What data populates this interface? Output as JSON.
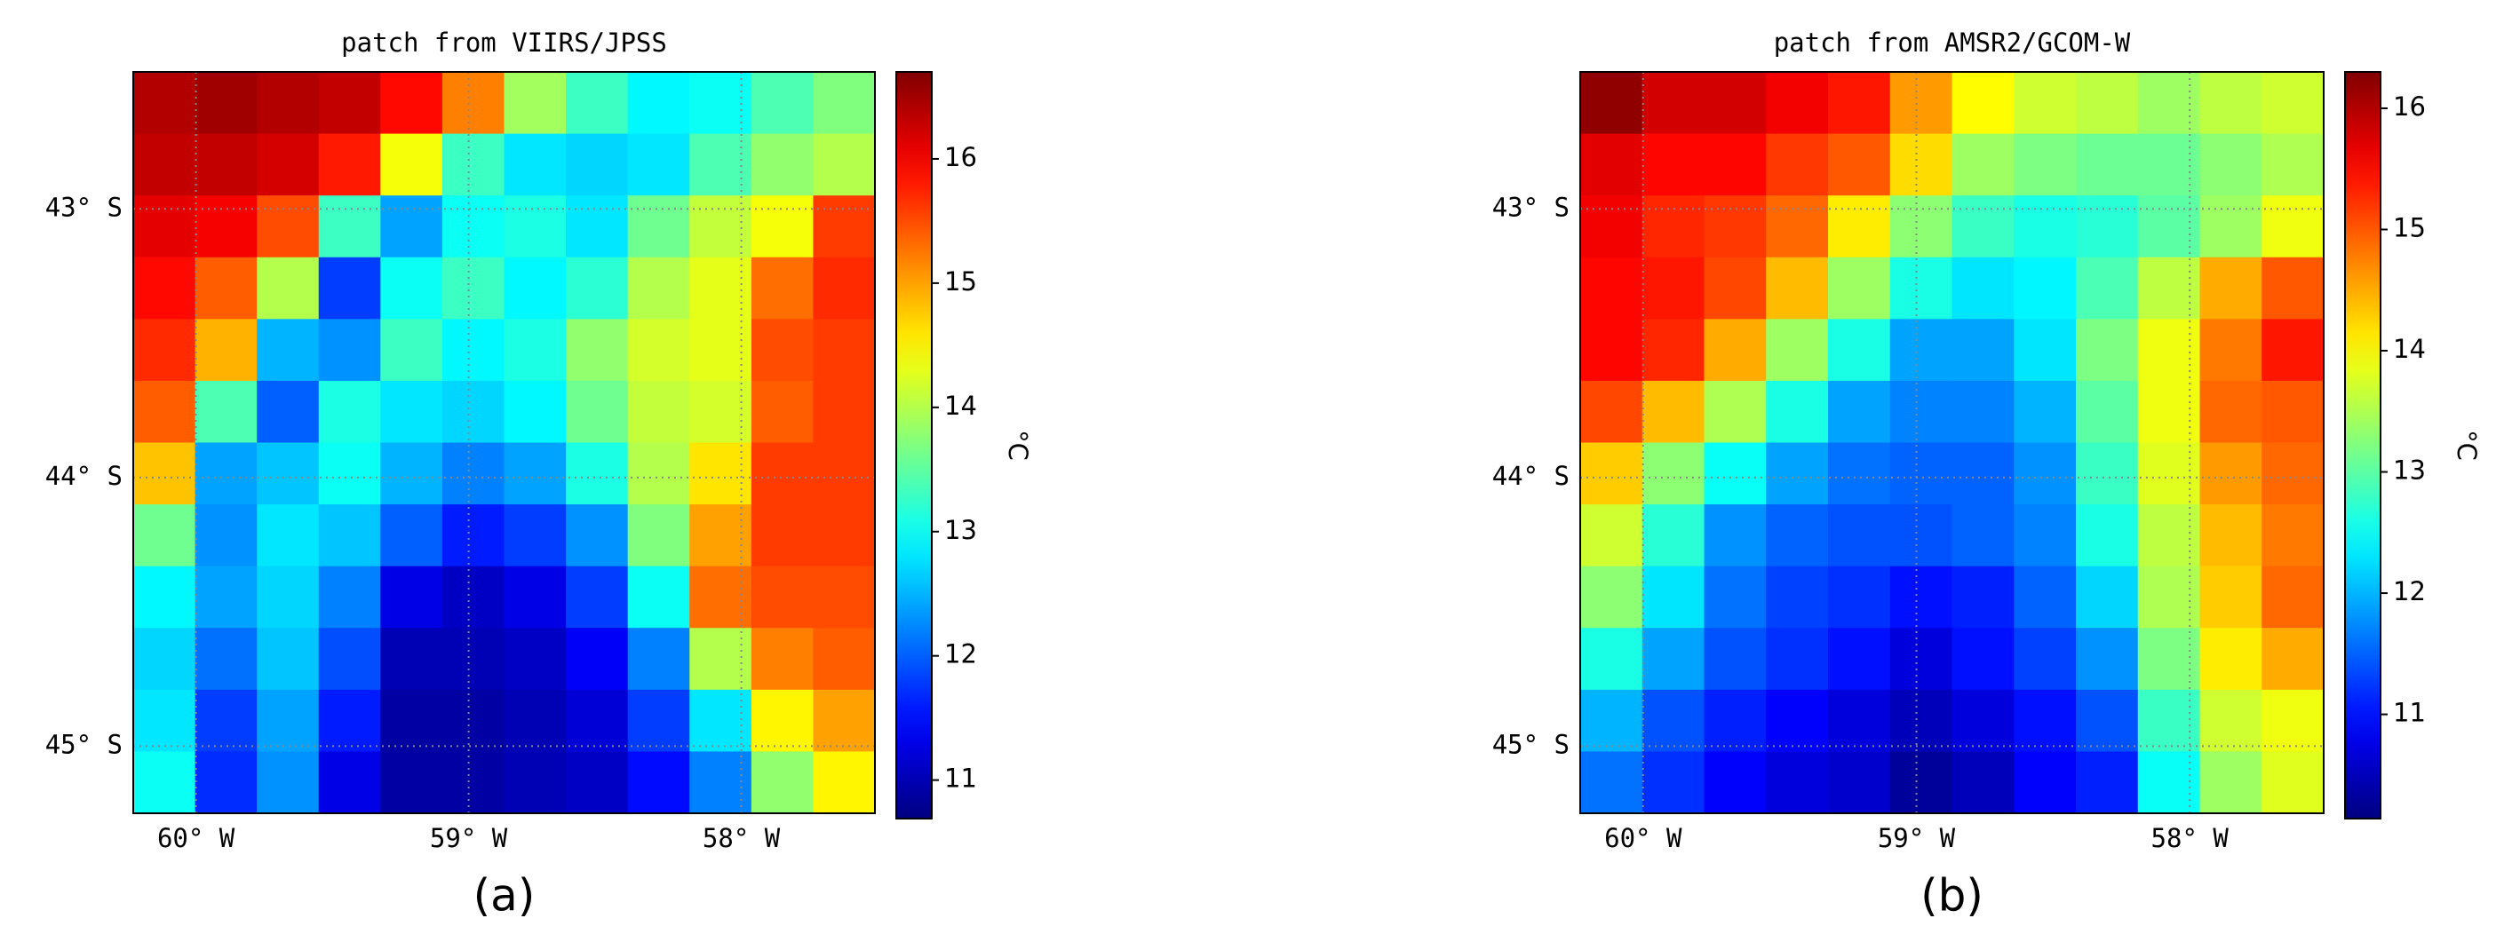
{
  "chart_data": [
    {
      "type": "heatmap",
      "title": "patch from VIIRS/JPSS",
      "caption": "(a)",
      "colormap": "jet",
      "grid": true,
      "colorbar_label": "°C",
      "xlim": [
        -60.23,
        -57.51
      ],
      "ylim": [
        -45.25,
        -42.49
      ],
      "xticks": [
        {
          "value": -60,
          "label": "60° W"
        },
        {
          "value": -59,
          "label": "59° W"
        },
        {
          "value": -58,
          "label": "58° W"
        }
      ],
      "yticks": [
        {
          "value": -45,
          "label": "45° S"
        },
        {
          "value": -44,
          "label": "44° S"
        },
        {
          "value": -43,
          "label": "43° S"
        }
      ],
      "clim": [
        10.69,
        16.7
      ],
      "cticks": [
        11,
        12,
        13,
        14,
        15,
        16
      ],
      "values": [
        [
          16.4,
          16.5,
          16.4,
          16.3,
          15.9,
          15.2,
          13.9,
          13.3,
          12.9,
          13.0,
          13.4,
          13.7
        ],
        [
          16.3,
          16.3,
          16.2,
          15.8,
          14.4,
          13.3,
          12.8,
          12.7,
          12.8,
          13.4,
          13.8,
          14.0
        ],
        [
          16.1,
          16.0,
          15.5,
          13.3,
          12.4,
          13.0,
          13.1,
          12.8,
          13.6,
          14.1,
          14.4,
          15.6
        ],
        [
          15.9,
          15.4,
          14.0,
          11.8,
          13.0,
          13.3,
          12.9,
          13.2,
          14.0,
          14.3,
          15.3,
          15.7
        ],
        [
          15.7,
          14.9,
          12.5,
          12.3,
          13.3,
          12.9,
          13.1,
          13.8,
          14.2,
          14.3,
          15.5,
          15.6
        ],
        [
          15.4,
          13.4,
          12.0,
          13.1,
          12.8,
          12.7,
          12.9,
          13.6,
          14.1,
          14.2,
          15.4,
          15.6
        ],
        [
          14.8,
          12.4,
          12.6,
          13.0,
          12.5,
          12.2,
          12.4,
          13.1,
          14.0,
          14.6,
          15.6,
          15.6
        ],
        [
          13.6,
          12.3,
          12.8,
          12.6,
          12.0,
          11.6,
          11.8,
          12.3,
          13.7,
          15.0,
          15.6,
          15.6
        ],
        [
          12.9,
          12.4,
          12.7,
          12.2,
          11.3,
          11.1,
          11.3,
          11.8,
          13.0,
          15.3,
          15.5,
          15.5
        ],
        [
          12.7,
          12.1,
          12.6,
          11.9,
          11.0,
          11.0,
          11.1,
          11.4,
          12.2,
          14.0,
          15.2,
          15.4
        ],
        [
          12.8,
          11.8,
          12.4,
          11.6,
          10.9,
          10.9,
          11.0,
          11.2,
          11.8,
          12.8,
          14.5,
          15.0
        ],
        [
          13.0,
          11.7,
          12.3,
          11.3,
          10.9,
          10.9,
          11.0,
          11.1,
          11.5,
          12.2,
          13.8,
          14.5
        ]
      ]
    },
    {
      "type": "heatmap",
      "title": "patch from AMSR2/GCOM-W",
      "caption": "(b)",
      "colormap": "jet",
      "grid": true,
      "colorbar_label": "°C",
      "xlim": [
        -60.23,
        -57.51
      ],
      "ylim": [
        -45.25,
        -42.49
      ],
      "xticks": [
        {
          "value": -60,
          "label": "60° W"
        },
        {
          "value": -59,
          "label": "59° W"
        },
        {
          "value": -58,
          "label": "58° W"
        }
      ],
      "yticks": [
        {
          "value": -45,
          "label": "45° S"
        },
        {
          "value": -44,
          "label": "44° S"
        },
        {
          "value": -43,
          "label": "43° S"
        }
      ],
      "clim": [
        10.14,
        16.3
      ],
      "cticks": [
        11,
        12,
        13,
        14,
        15,
        16
      ],
      "values": [
        [
          16.2,
          15.8,
          15.8,
          15.6,
          15.4,
          14.6,
          14.0,
          13.7,
          13.6,
          13.4,
          13.6,
          13.7
        ],
        [
          15.7,
          15.5,
          15.5,
          15.2,
          15.0,
          14.2,
          13.4,
          13.2,
          13.1,
          13.1,
          13.3,
          13.5
        ],
        [
          15.6,
          15.3,
          15.2,
          14.9,
          14.1,
          13.3,
          12.8,
          12.6,
          12.7,
          13.0,
          13.4,
          13.9
        ],
        [
          15.5,
          15.4,
          15.1,
          14.4,
          13.4,
          12.6,
          12.3,
          12.4,
          12.9,
          13.6,
          14.5,
          15.0
        ],
        [
          15.5,
          15.3,
          14.5,
          13.4,
          12.6,
          11.9,
          11.9,
          12.3,
          13.2,
          13.9,
          14.8,
          15.4
        ],
        [
          15.1,
          14.4,
          13.5,
          12.6,
          11.9,
          11.7,
          11.7,
          12.0,
          13.0,
          13.9,
          14.9,
          15.0
        ],
        [
          14.3,
          13.3,
          12.5,
          11.9,
          11.6,
          11.5,
          11.5,
          11.8,
          12.8,
          13.8,
          14.6,
          14.9
        ],
        [
          13.7,
          12.7,
          11.8,
          11.5,
          11.4,
          11.4,
          11.5,
          11.7,
          12.6,
          13.6,
          14.4,
          14.8
        ],
        [
          13.3,
          12.3,
          11.6,
          11.3,
          11.2,
          11.0,
          11.1,
          11.5,
          12.2,
          13.5,
          14.3,
          14.9
        ],
        [
          12.6,
          11.9,
          11.4,
          11.2,
          11.0,
          10.7,
          11.0,
          11.3,
          11.8,
          13.2,
          14.1,
          14.5
        ],
        [
          12.0,
          11.4,
          11.1,
          10.9,
          10.7,
          10.5,
          10.7,
          11.0,
          11.4,
          12.8,
          13.7,
          13.9
        ],
        [
          11.6,
          11.2,
          10.9,
          10.7,
          10.6,
          10.3,
          10.5,
          10.9,
          11.1,
          12.5,
          13.4,
          13.8
        ]
      ]
    }
  ]
}
